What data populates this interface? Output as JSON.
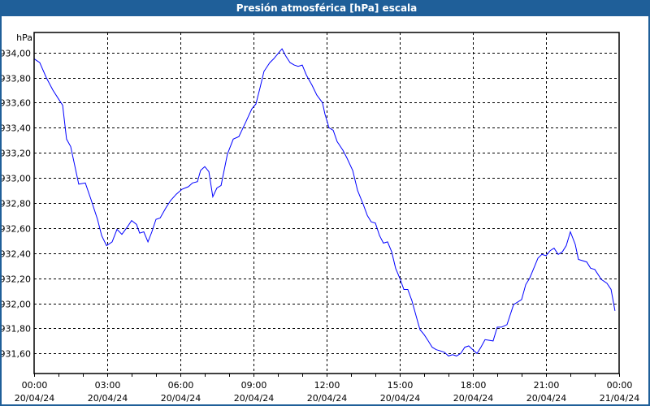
{
  "window": {
    "title": "Presión atmosférica [hPa] escala"
  },
  "chart_data": {
    "type": "line",
    "title": "Presión atmosférica [hPa] escala",
    "ylabel": "hPa",
    "xlabel": "",
    "ylim": [
      931.44,
      934.16
    ],
    "xlim_hours": [
      0,
      24
    ],
    "grid": true,
    "line_color": "#0000ff",
    "y_ticks": [
      "931,60",
      "931,80",
      "932,00",
      "932,20",
      "932,40",
      "932,60",
      "932,80",
      "933,00",
      "933,20",
      "933,40",
      "933,60",
      "933,80",
      "934,00"
    ],
    "y_tick_values": [
      931.6,
      931.8,
      932.0,
      932.2,
      932.4,
      932.6,
      932.8,
      933.0,
      933.2,
      933.4,
      933.6,
      933.8,
      934.0
    ],
    "x_ticks": [
      {
        "time": "00:00",
        "date": "20/04/24",
        "hour": 0
      },
      {
        "time": "03:00",
        "date": "20/04/24",
        "hour": 3
      },
      {
        "time": "06:00",
        "date": "20/04/24",
        "hour": 6
      },
      {
        "time": "09:00",
        "date": "20/04/24",
        "hour": 9
      },
      {
        "time": "12:00",
        "date": "20/04/24",
        "hour": 12
      },
      {
        "time": "15:00",
        "date": "20/04/24",
        "hour": 15
      },
      {
        "time": "18:00",
        "date": "20/04/24",
        "hour": 18
      },
      {
        "time": "21:00",
        "date": "20/04/24",
        "hour": 21
      },
      {
        "time": "00:00",
        "date": "21/04/24",
        "hour": 24
      }
    ],
    "series": [
      {
        "name": "Presión atmosférica",
        "x_hours": [
          0,
          0.23,
          0.5,
          0.77,
          1.0,
          1.17,
          1.33,
          1.5,
          1.83,
          2.1,
          2.33,
          2.6,
          2.77,
          2.97,
          3.2,
          3.4,
          3.6,
          3.83,
          4.0,
          4.2,
          4.33,
          4.5,
          4.67,
          4.83,
          5.0,
          5.17,
          5.4,
          5.6,
          5.83,
          6.07,
          6.33,
          6.5,
          6.7,
          6.83,
          7.0,
          7.17,
          7.33,
          7.5,
          7.67,
          7.93,
          8.17,
          8.4,
          8.67,
          8.93,
          9.1,
          9.27,
          9.43,
          9.67,
          9.83,
          10.0,
          10.17,
          10.33,
          10.5,
          10.67,
          10.83,
          11.0,
          11.17,
          11.4,
          11.6,
          11.83,
          11.93,
          12.1,
          12.27,
          12.43,
          12.67,
          12.83,
          13.07,
          13.27,
          13.5,
          13.67,
          13.83,
          14.0,
          14.17,
          14.33,
          14.5,
          14.67,
          14.83,
          15.0,
          15.17,
          15.33,
          15.5,
          15.67,
          15.83,
          16.0,
          16.17,
          16.33,
          16.5,
          16.67,
          16.83,
          17.0,
          17.17,
          17.33,
          17.5,
          17.67,
          17.83,
          18.0,
          18.17,
          18.33,
          18.5,
          18.83,
          19.0,
          19.17,
          19.4,
          19.67,
          20.0,
          20.17,
          20.33,
          20.5,
          20.67,
          20.83,
          21.0,
          21.17,
          21.33,
          21.5,
          21.67,
          21.83,
          22.0,
          22.2,
          22.33,
          22.67,
          22.83,
          23.0,
          23.27,
          23.5,
          23.67,
          23.83
        ],
        "values": [
          933.95,
          933.92,
          933.8,
          933.7,
          933.63,
          933.58,
          933.31,
          933.25,
          932.95,
          932.96,
          932.83,
          932.67,
          932.54,
          932.46,
          932.49,
          932.59,
          932.55,
          932.61,
          932.66,
          932.63,
          932.56,
          932.57,
          932.49,
          932.57,
          932.67,
          932.68,
          932.76,
          932.82,
          932.87,
          932.91,
          932.93,
          932.96,
          932.97,
          933.06,
          933.09,
          933.05,
          932.85,
          932.92,
          932.94,
          933.19,
          933.31,
          933.33,
          933.44,
          933.55,
          933.59,
          933.72,
          933.85,
          933.92,
          933.95,
          933.99,
          934.03,
          933.97,
          933.92,
          933.9,
          933.89,
          933.9,
          933.82,
          933.74,
          933.66,
          933.6,
          933.51,
          933.4,
          933.38,
          933.29,
          933.22,
          933.16,
          933.06,
          932.9,
          932.79,
          932.7,
          932.65,
          932.64,
          932.54,
          932.48,
          932.49,
          932.41,
          932.28,
          932.2,
          932.11,
          932.11,
          932.02,
          931.9,
          931.79,
          931.75,
          931.7,
          931.65,
          931.63,
          931.62,
          931.61,
          931.58,
          931.59,
          931.58,
          931.6,
          931.65,
          931.66,
          931.63,
          931.6,
          931.65,
          931.71,
          931.7,
          931.81,
          931.81,
          931.83,
          931.99,
          932.03,
          932.15,
          932.2,
          932.28,
          932.36,
          932.39,
          932.38,
          932.42,
          932.44,
          932.39,
          932.41,
          932.46,
          932.57,
          932.47,
          932.35,
          932.33,
          932.28,
          932.27,
          932.19,
          932.16,
          932.11,
          931.94
        ]
      }
    ]
  }
}
